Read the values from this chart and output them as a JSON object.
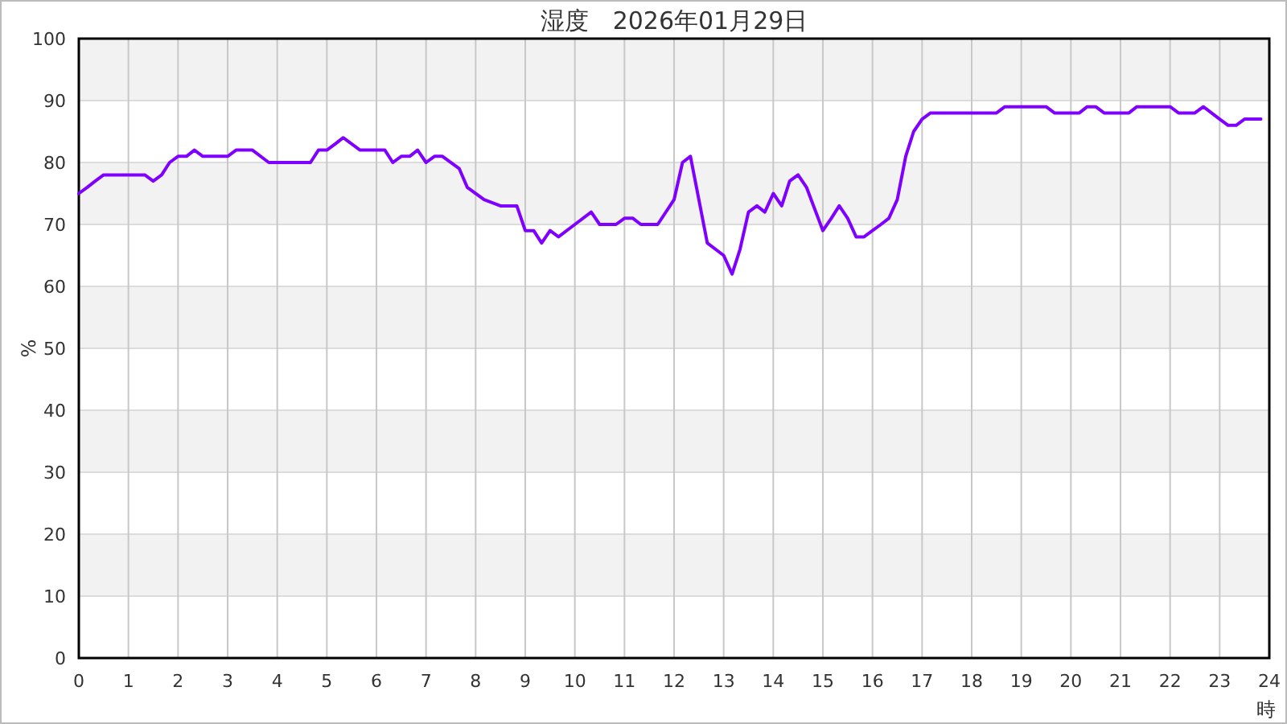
{
  "chart_data": {
    "type": "line",
    "title": "湿度　2026年01月29日",
    "xlabel": "時",
    "ylabel": "%",
    "xlim": [
      0,
      24
    ],
    "xticks": [
      0,
      1,
      2,
      3,
      4,
      5,
      6,
      7,
      8,
      9,
      10,
      11,
      12,
      13,
      14,
      15,
      16,
      17,
      18,
      19,
      20,
      21,
      22,
      23,
      24
    ],
    "ylim": [
      0,
      100
    ],
    "yticks": [
      0,
      10,
      20,
      30,
      40,
      50,
      60,
      70,
      80,
      90,
      100
    ],
    "grid": true,
    "marker": "none",
    "line_style": "solid",
    "series": [
      {
        "color": "#8000ff",
        "x": [
          0,
          0.17,
          0.33,
          0.5,
          1.33,
          1.5,
          1.67,
          1.83,
          2,
          2.17,
          2.33,
          2.5,
          3,
          3.17,
          3.5,
          3.83,
          4.67,
          4.83,
          5,
          5.17,
          5.33,
          5.5,
          5.67,
          6.17,
          6.33,
          6.5,
          6.67,
          6.83,
          7,
          7.17,
          7.33,
          7.67,
          7.83,
          8.17,
          8.5,
          8.83,
          9,
          9.17,
          9.33,
          9.5,
          9.67,
          10,
          10.33,
          10.5,
          10.83,
          11,
          11.17,
          11.33,
          11.67,
          12,
          12.17,
          12.33,
          12.5,
          12.67,
          13,
          13.17,
          13.33,
          13.5,
          13.67,
          13.83,
          14,
          14.17,
          14.33,
          14.5,
          14.67,
          15,
          15.17,
          15.33,
          15.5,
          15.67,
          15.83,
          16,
          16.17,
          16.33,
          16.5,
          16.67,
          16.83,
          17,
          17.17,
          18.5,
          18.67,
          19.5,
          19.67,
          20.17,
          20.33,
          20.5,
          20.67,
          21.17,
          21.33,
          22,
          22.17,
          22.5,
          22.67,
          23,
          23.17,
          23.33,
          23.5,
          23.83
        ],
        "values": [
          75,
          76,
          77,
          78,
          78,
          77,
          78,
          80,
          81,
          81,
          82,
          81,
          81,
          82,
          82,
          80,
          80,
          82,
          82,
          83,
          84,
          83,
          82,
          82,
          80,
          81,
          81,
          82,
          80,
          81,
          81,
          79,
          76,
          74,
          73,
          73,
          69,
          69,
          67,
          69,
          68,
          70,
          72,
          70,
          70,
          71,
          71,
          70,
          70,
          74,
          80,
          81,
          74,
          67,
          65,
          62,
          66,
          72,
          73,
          72,
          75,
          73,
          77,
          78,
          76,
          69,
          71,
          73,
          71,
          68,
          68,
          69,
          70,
          71,
          74,
          81,
          85,
          87,
          88,
          88,
          89,
          89,
          88,
          88,
          89,
          89,
          88,
          88,
          89,
          89,
          88,
          88,
          89,
          87,
          86,
          86,
          87,
          87
        ]
      }
    ]
  }
}
